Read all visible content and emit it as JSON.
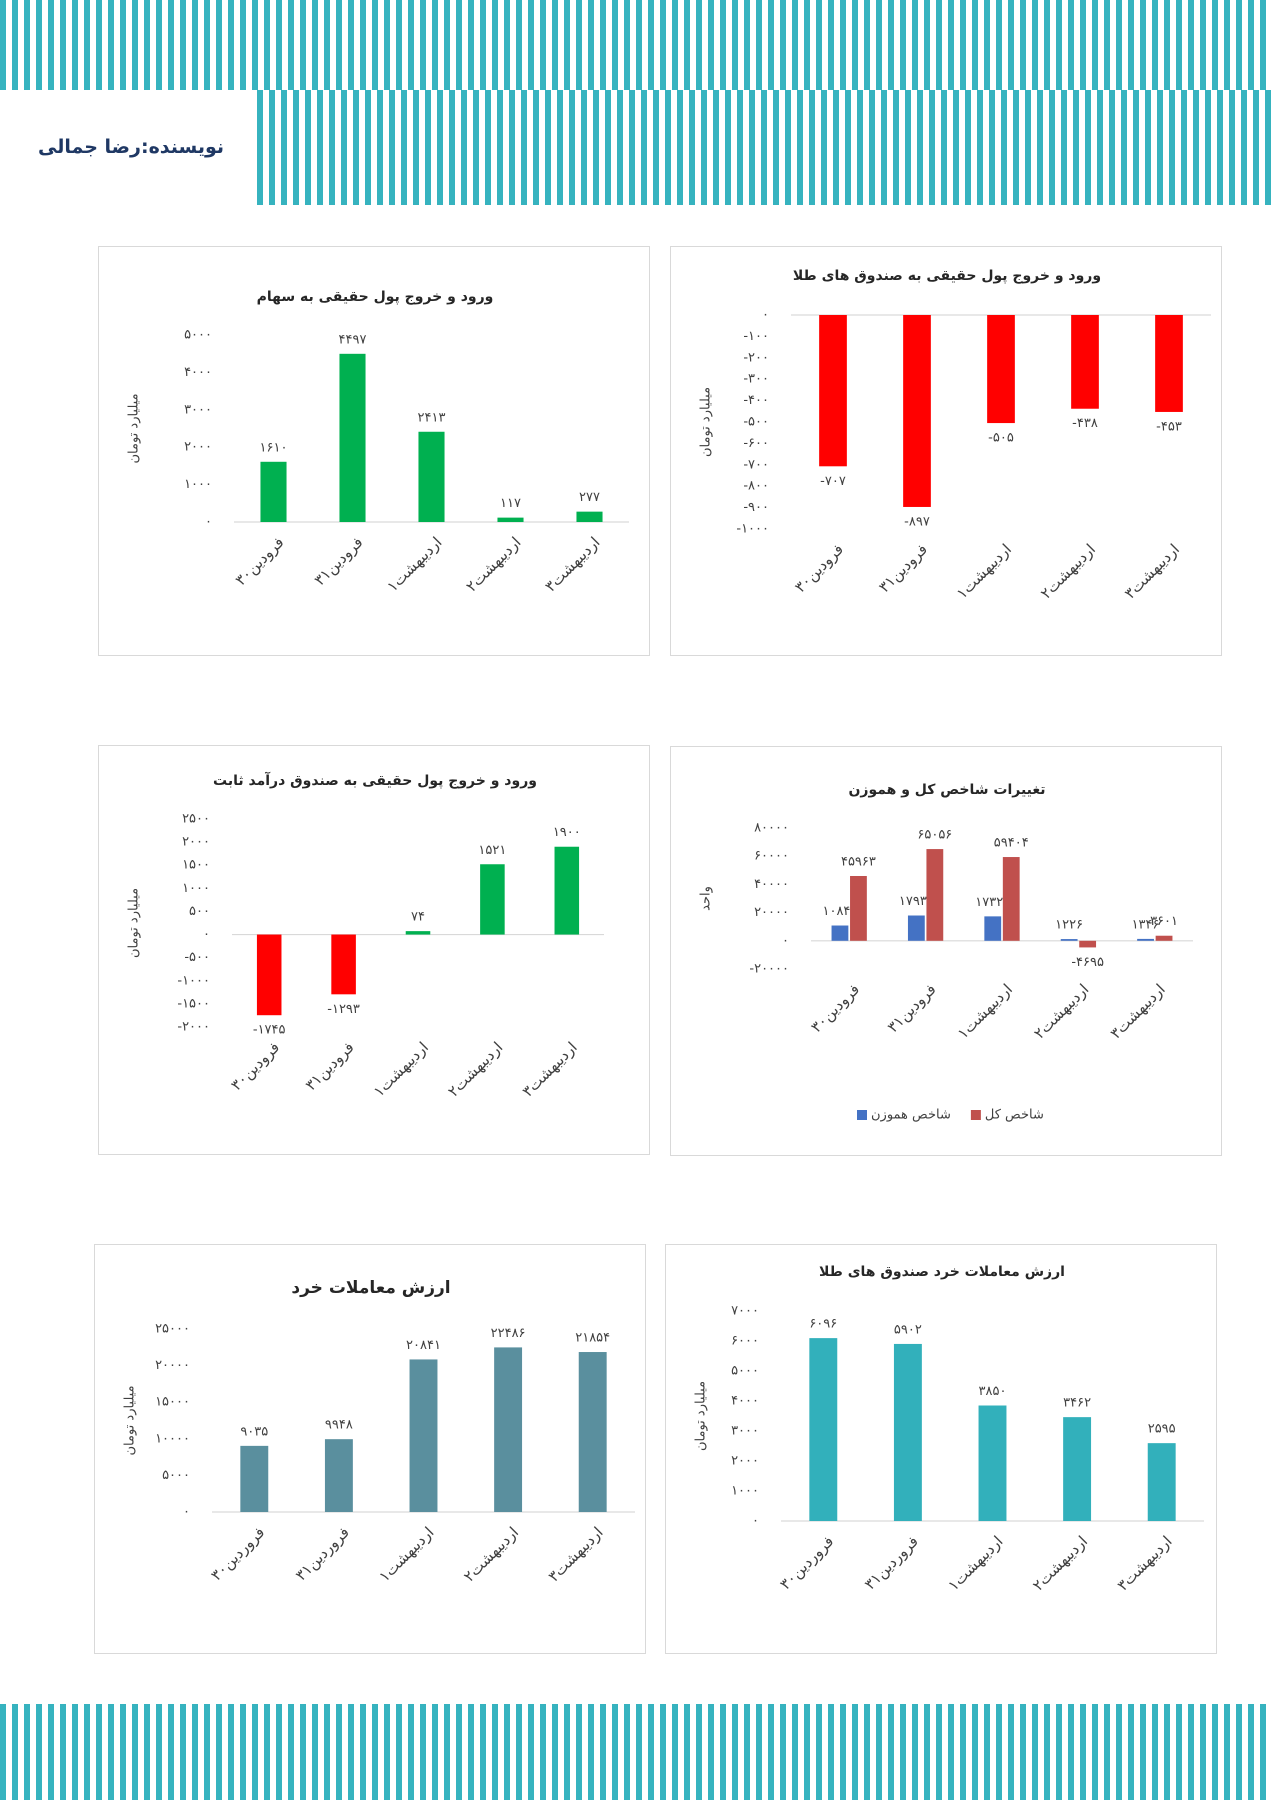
{
  "header": {
    "author": "نویسنده:رضا جمالی"
  },
  "chart_data": [
    {
      "type": "bar",
      "title": "ورود و خروج پول حقیقی به سهام",
      "y_label": "میلیارد تومان",
      "categories": [
        "۳۰فرودین",
        "۳۱فرودین",
        "۱اردیبهشت",
        "۲اردیبهشت",
        "۳اردیبهشت"
      ],
      "values": [
        1610,
        4497,
        2413,
        117,
        277
      ],
      "value_labels": [
        "۱۶۱۰",
        "۴۴۹۷",
        "۲۴۱۳",
        "۱۱۷",
        "۲۷۷"
      ],
      "color": "#00b050",
      "ylim": [
        0,
        5000
      ],
      "yticks": [
        {
          "value": 0,
          "label": "۰"
        },
        {
          "value": 1000,
          "label": "۱۰۰۰"
        },
        {
          "value": 2000,
          "label": "۲۰۰۰"
        },
        {
          "value": 3000,
          "label": "۳۰۰۰"
        },
        {
          "value": 4000,
          "label": "۴۰۰۰"
        },
        {
          "value": 5000,
          "label": "۵۰۰۰"
        }
      ]
    },
    {
      "type": "bar",
      "title": "ورود و خروج پول حقیقی به صندوق های طلا",
      "y_label": "میلیارد تومان",
      "categories": [
        "۳۰فرودین",
        "۳۱فرودین",
        "۱اردیبهشت",
        "۲اردیبهشت",
        "۳اردیبهشت"
      ],
      "values": [
        -707,
        -897,
        -505,
        -438,
        -453
      ],
      "value_labels": [
        "-۷۰۷",
        "-۸۹۷",
        "-۵۰۵",
        "-۴۳۸",
        "-۴۵۳"
      ],
      "color": "#ff0000",
      "ylim": [
        -1000,
        0
      ],
      "yticks": [
        {
          "value": 0,
          "label": "۰"
        },
        {
          "value": -100,
          "label": "-۱۰۰"
        },
        {
          "value": -200,
          "label": "-۲۰۰"
        },
        {
          "value": -300,
          "label": "-۳۰۰"
        },
        {
          "value": -400,
          "label": "-۴۰۰"
        },
        {
          "value": -500,
          "label": "-۵۰۰"
        },
        {
          "value": -600,
          "label": "-۶۰۰"
        },
        {
          "value": -700,
          "label": "-۷۰۰"
        },
        {
          "value": -800,
          "label": "-۸۰۰"
        },
        {
          "value": -900,
          "label": "-۹۰۰"
        },
        {
          "value": -1000,
          "label": "-۱۰۰۰"
        }
      ]
    },
    {
      "type": "bar",
      "title": "ورود و خروج پول حقیقی به صندوق درآمد ثابت",
      "y_label": "میلیارد تومان",
      "categories": [
        "۳۰فرودین",
        "۳۱فرودین",
        "۱اردیبهشت",
        "۲اردیبهشت",
        "۳اردیبهشت"
      ],
      "values": [
        -1745,
        -1293,
        74,
        1521,
        1900
      ],
      "value_labels": [
        "-۱۷۴۵",
        "-۱۲۹۳",
        "۷۴",
        "۱۵۲۱",
        "۱۹۰۰"
      ],
      "colors": [
        "#ff0000",
        "#ff0000",
        "#00b050",
        "#00b050",
        "#00b050"
      ],
      "ylim": [
        -2000,
        2500
      ],
      "yticks": [
        {
          "value": -2000,
          "label": "-۲۰۰۰"
        },
        {
          "value": -1500,
          "label": "-۱۵۰۰"
        },
        {
          "value": -1000,
          "label": "-۱۰۰۰"
        },
        {
          "value": -500,
          "label": "-۵۰۰"
        },
        {
          "value": 0,
          "label": "۰"
        },
        {
          "value": 500,
          "label": "۵۰۰"
        },
        {
          "value": 1000,
          "label": "۱۰۰۰"
        },
        {
          "value": 1500,
          "label": "۱۵۰۰"
        },
        {
          "value": 2000,
          "label": "۲۰۰۰"
        },
        {
          "value": 2500,
          "label": "۲۵۰۰"
        }
      ]
    },
    {
      "type": "bar",
      "title": "تغییرات شاخص کل و هموزن",
      "y_label": "واحد",
      "categories": [
        "۳۰فرودین",
        "۳۱فرودین",
        "۱اردیبهشت",
        "۲اردیبهشت",
        "۳اردیبهشت"
      ],
      "series": [
        {
          "name": "شاخص هموزن",
          "color": "#4472c4",
          "values": [
            10842,
            17939,
            17329,
            1226,
            1346
          ],
          "value_labels": [
            "۱۰۸۴۲",
            "۱۷۹۳۹",
            "۱۷۳۲۹",
            "۱۲۲۶",
            "۱۳۴۶"
          ]
        },
        {
          "name": "شاخص کل",
          "color": "#c0504d",
          "values": [
            45963,
            65056,
            59404,
            -4695,
            3601
          ],
          "value_labels": [
            "۴۵۹۶۳",
            "۶۵۰۵۶",
            "۵۹۴۰۴",
            "-۴۶۹۵",
            "۳۶۰۱"
          ]
        }
      ],
      "legend": "bottom",
      "ylim": [
        -20000,
        80000
      ],
      "yticks": [
        {
          "value": -20000,
          "label": "-۲۰۰۰۰"
        },
        {
          "value": 0,
          "label": "۰"
        },
        {
          "value": 20000,
          "label": "۲۰۰۰۰"
        },
        {
          "value": 40000,
          "label": "۴۰۰۰۰"
        },
        {
          "value": 60000,
          "label": "۶۰۰۰۰"
        },
        {
          "value": 80000,
          "label": "۸۰۰۰۰"
        }
      ]
    },
    {
      "type": "bar",
      "title": "ارزش معاملات خرد",
      "y_label": "میلیارد تومان",
      "categories": [
        "۳۰فروردین",
        "۳۱فروردین",
        "۱اردیبهشت",
        "۲اردیبهشت",
        "۳اردیبهشت"
      ],
      "values": [
        9035,
        9948,
        20841,
        22486,
        21854
      ],
      "value_labels": [
        "۹۰۳۵",
        "۹۹۴۸",
        "۲۰۸۴۱",
        "۲۲۴۸۶",
        "۲۱۸۵۴"
      ],
      "color": "#5a8f9e",
      "ylim": [
        0,
        25000
      ],
      "yticks": [
        {
          "value": 0,
          "label": "۰"
        },
        {
          "value": 5000,
          "label": "۵۰۰۰"
        },
        {
          "value": 10000,
          "label": "۱۰۰۰۰"
        },
        {
          "value": 15000,
          "label": "۱۵۰۰۰"
        },
        {
          "value": 20000,
          "label": "۲۰۰۰۰"
        },
        {
          "value": 25000,
          "label": "۲۵۰۰۰"
        }
      ]
    },
    {
      "type": "bar",
      "title": "ارزش معاملات خرد صندوق های طلا",
      "y_label": "میلیارد تومان",
      "categories": [
        "۳۰فروردین",
        "۳۱فروردین",
        "۱اردیبهشت",
        "۲اردیبهشت",
        "۳اردیبهشت"
      ],
      "values": [
        6096,
        5902,
        3850,
        3462,
        2595
      ],
      "value_labels": [
        "۶۰۹۶",
        "۵۹۰۲",
        "۳۸۵۰",
        "۳۴۶۲",
        "۲۵۹۵"
      ],
      "color": "#32b0bb",
      "ylim": [
        0,
        7000
      ],
      "yticks": [
        {
          "value": 0,
          "label": "۰"
        },
        {
          "value": 1000,
          "label": "۱۰۰۰"
        },
        {
          "value": 2000,
          "label": "۲۰۰۰"
        },
        {
          "value": 3000,
          "label": "۳۰۰۰"
        },
        {
          "value": 4000,
          "label": "۴۰۰۰"
        },
        {
          "value": 5000,
          "label": "۵۰۰۰"
        },
        {
          "value": 6000,
          "label": "۶۰۰۰"
        },
        {
          "value": 7000,
          "label": "۷۰۰۰"
        }
      ]
    }
  ]
}
